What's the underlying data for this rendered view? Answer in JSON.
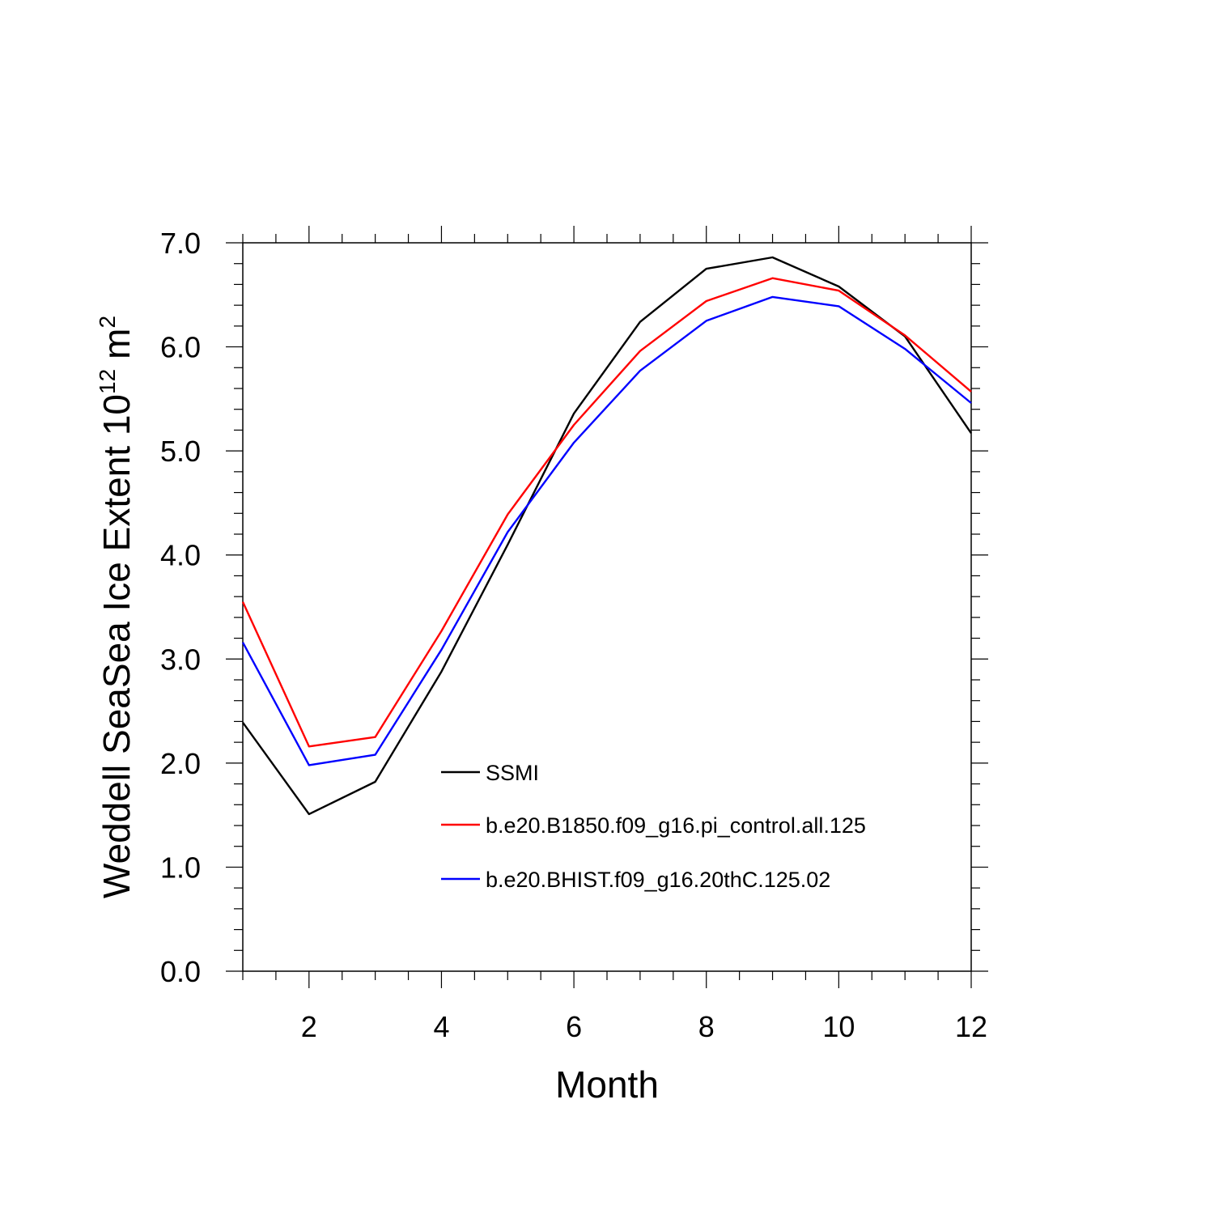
{
  "chart_data": {
    "type": "line",
    "xlabel": "Month",
    "ylabel": "Weddell SeaSea Ice Extent 10",
    "ylabel_sup": "12",
    "ylabel_unit": "m",
    "ylabel_unit_sup": "2",
    "xlim": [
      1,
      12
    ],
    "ylim": [
      0,
      7
    ],
    "x_ticks": [
      2,
      4,
      6,
      8,
      10,
      12
    ],
    "y_ticks": [
      "0.0",
      "1.0",
      "2.0",
      "3.0",
      "4.0",
      "5.0",
      "6.0",
      "7.0"
    ],
    "x": [
      1,
      2,
      3,
      4,
      5,
      6,
      7,
      8,
      9,
      10,
      11,
      12
    ],
    "grid": false,
    "legend_position": "lower-center inside plot",
    "series": [
      {
        "name": "SSMI",
        "color": "#000000",
        "values": [
          2.39,
          1.51,
          1.82,
          2.88,
          4.1,
          5.36,
          6.24,
          6.75,
          6.86,
          6.58,
          6.1,
          5.17
        ]
      },
      {
        "name": "b.e20.B1850.f09_g16.pi_control.all.125",
        "color": "#ff0000",
        "values": [
          3.55,
          2.16,
          2.25,
          3.27,
          4.39,
          5.25,
          5.96,
          6.44,
          6.66,
          6.54,
          6.11,
          5.57
        ]
      },
      {
        "name": "b.e20.BHIST.f09_g16.20thC.125.02",
        "color": "#0000ff",
        "values": [
          3.16,
          1.98,
          2.08,
          3.09,
          4.22,
          5.08,
          5.77,
          6.25,
          6.48,
          6.39,
          5.98,
          5.46
        ]
      }
    ]
  }
}
